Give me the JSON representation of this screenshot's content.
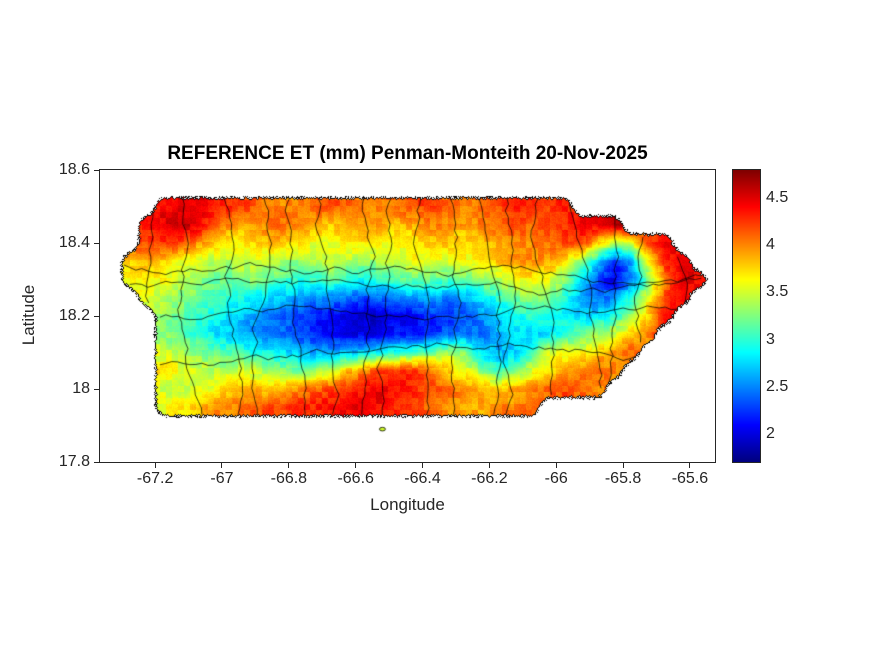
{
  "chart_data": {
    "type": "heatmap",
    "title": "REFERENCE ET (mm) Penman-Monteith 20-Nov-2025",
    "xlabel": "Longitude",
    "ylabel": "Latitude",
    "xlim": [
      -67.365,
      -65.525
    ],
    "ylim": [
      17.8,
      18.6
    ],
    "xticks": [
      -67.2,
      -67,
      -66.8,
      -66.6,
      -66.4,
      -66.2,
      -66,
      -65.8,
      -65.6
    ],
    "xtick_labels": [
      "-67.2",
      "-67",
      "-66.8",
      "-66.6",
      "-66.4",
      "-66.2",
      "-66",
      "-65.8",
      "-65.6"
    ],
    "yticks": [
      18.6,
      18.4,
      18.2,
      18,
      17.8
    ],
    "ytick_labels": [
      "18.6",
      "18.4",
      "18.2",
      "18",
      "17.8"
    ],
    "colormap": "jet",
    "clim": [
      1.7,
      4.8
    ],
    "colorbar_ticks": [
      2,
      2.5,
      3,
      3.5,
      4,
      4.5
    ],
    "colorbar_tick_labels": [
      "2",
      "2.5",
      "3",
      "3.5",
      "4",
      "4.5"
    ],
    "legend_position": "colorbar-right",
    "grid_lines": false,
    "boundaries": "municipal",
    "islets": [
      {
        "lon": -66.52,
        "lat": 17.89,
        "value": 3.5
      }
    ],
    "grid": {
      "lon_start": -67.275,
      "lon_step": 0.05,
      "ncols": 35,
      "lat_start": 18.5,
      "lat_step": -0.05,
      "nrows": 12,
      "values": [
        [
          null,
          null,
          4.4,
          4.5,
          4.5,
          4.4,
          4.3,
          4.2,
          4.1,
          4.0,
          4.0,
          4.1,
          4.2,
          4.1,
          4.0,
          4.0,
          4.1,
          4.2,
          4.2,
          4.1,
          4.0,
          4.1,
          4.2,
          4.3,
          4.3,
          4.2,
          4.3,
          null,
          null,
          null,
          null,
          null,
          null,
          null,
          null
        ],
        [
          null,
          4.3,
          4.5,
          4.6,
          4.5,
          4.2,
          4.0,
          3.9,
          4.0,
          4.1,
          4.0,
          3.9,
          3.8,
          3.9,
          4.0,
          3.9,
          3.8,
          3.9,
          4.0,
          4.0,
          3.9,
          4.0,
          4.1,
          4.2,
          4.1,
          4.2,
          4.3,
          4.4,
          4.5,
          4.6,
          null,
          null,
          null,
          null,
          null
        ],
        [
          null,
          4.2,
          4.3,
          4.2,
          4.0,
          3.8,
          3.6,
          3.7,
          3.8,
          3.8,
          3.7,
          3.6,
          3.6,
          3.7,
          3.7,
          3.6,
          3.6,
          3.7,
          3.8,
          3.8,
          3.7,
          3.8,
          3.9,
          4.0,
          4.0,
          4.1,
          4.2,
          4.3,
          3.8,
          3.4,
          3.6,
          4.2,
          4.4,
          null,
          null
        ],
        [
          3.8,
          3.9,
          3.8,
          3.6,
          3.5,
          3.4,
          3.4,
          3.5,
          3.5,
          3.4,
          3.3,
          3.4,
          3.5,
          3.4,
          3.3,
          3.4,
          3.5,
          3.6,
          3.6,
          3.5,
          3.6,
          3.7,
          3.8,
          3.9,
          4.0,
          3.9,
          3.7,
          3.3,
          2.8,
          2.2,
          2.6,
          3.6,
          4.3,
          4.5,
          null
        ],
        [
          3.6,
          3.7,
          3.6,
          3.4,
          3.3,
          3.2,
          3.2,
          3.3,
          3.2,
          3.1,
          3.0,
          3.0,
          3.1,
          3.0,
          2.9,
          3.0,
          3.1,
          3.2,
          3.2,
          3.1,
          3.2,
          3.3,
          3.4,
          3.6,
          3.7,
          3.6,
          3.3,
          2.8,
          2.3,
          2.0,
          2.4,
          3.2,
          4.0,
          4.5,
          4.4
        ],
        [
          null,
          3.5,
          3.4,
          3.3,
          3.2,
          3.1,
          3.0,
          2.9,
          2.8,
          2.7,
          2.6,
          2.5,
          2.5,
          2.4,
          2.3,
          2.4,
          2.5,
          2.6,
          2.6,
          2.5,
          2.6,
          2.8,
          3.0,
          3.2,
          3.3,
          3.2,
          3.0,
          2.6,
          2.4,
          2.5,
          3.0,
          3.6,
          4.2,
          4.4,
          null
        ],
        [
          null,
          null,
          3.3,
          3.2,
          3.0,
          2.9,
          2.8,
          2.6,
          2.5,
          2.4,
          2.3,
          2.2,
          2.1,
          2.0,
          1.9,
          1.9,
          2.0,
          2.1,
          2.2,
          2.2,
          2.3,
          2.5,
          2.7,
          2.9,
          3.0,
          2.9,
          2.8,
          2.7,
          2.8,
          3.0,
          3.3,
          3.8,
          4.3,
          null,
          null
        ],
        [
          null,
          null,
          3.3,
          3.1,
          3.0,
          2.8,
          2.7,
          2.6,
          2.5,
          2.4,
          2.3,
          2.2,
          2.1,
          2.0,
          2.0,
          2.1,
          2.2,
          2.1,
          2.2,
          2.4,
          2.5,
          2.4,
          2.6,
          2.8,
          2.7,
          2.8,
          3.0,
          3.2,
          3.3,
          3.5,
          3.8,
          4.0,
          null,
          null,
          null
        ],
        [
          null,
          null,
          3.5,
          3.4,
          3.3,
          3.2,
          3.1,
          3.0,
          2.9,
          2.8,
          2.7,
          2.6,
          2.6,
          2.7,
          2.8,
          2.9,
          3.0,
          3.1,
          3.2,
          3.4,
          3.3,
          2.8,
          2.6,
          2.7,
          3.0,
          3.5,
          3.6,
          3.6,
          3.8,
          4.0,
          4.1,
          null,
          null,
          null,
          null
        ],
        [
          null,
          null,
          3.7,
          3.6,
          3.5,
          3.4,
          3.4,
          3.5,
          3.4,
          3.3,
          3.2,
          3.3,
          3.5,
          3.8,
          4.0,
          4.2,
          4.3,
          4.3,
          4.1,
          3.8,
          3.6,
          3.3,
          3.0,
          3.2,
          3.5,
          3.7,
          3.9,
          4.0,
          4.1,
          4.0,
          null,
          null,
          null,
          null,
          null
        ],
        [
          null,
          null,
          3.5,
          3.4,
          3.5,
          3.6,
          3.8,
          3.9,
          3.8,
          3.9,
          4.0,
          4.1,
          4.2,
          4.3,
          4.4,
          4.5,
          4.4,
          4.3,
          4.2,
          4.1,
          4.0,
          3.9,
          3.8,
          3.9,
          4.0,
          4.1,
          4.2,
          4.1,
          4.0,
          null,
          null,
          null,
          null,
          null,
          null
        ],
        [
          null,
          null,
          3.6,
          3.7,
          3.8,
          4.0,
          4.0,
          4.1,
          4.2,
          4.2,
          4.3,
          4.3,
          4.4,
          4.4,
          4.5,
          4.4,
          4.3,
          4.2,
          4.1,
          4.0,
          3.9,
          3.9,
          4.0,
          4.0,
          4.1,
          null,
          null,
          null,
          null,
          null,
          null,
          null,
          null,
          null,
          null
        ]
      ]
    }
  }
}
